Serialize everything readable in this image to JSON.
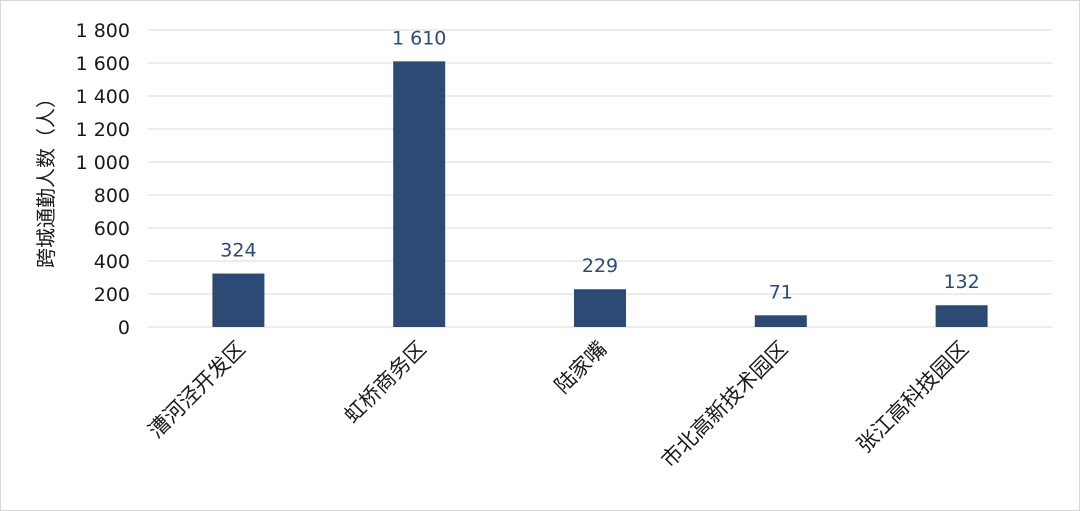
{
  "chart_data": {
    "type": "bar",
    "ylabel": "跨城通勤人数（人）",
    "categories": [
      "漕河泾开发区",
      "虹桥商务区",
      "陆家嘴",
      "市北高新技术园区",
      "张江高科技园区"
    ],
    "values": [
      324,
      1610,
      229,
      71,
      132
    ],
    "data_labels": [
      "324",
      "1 610",
      "229",
      "71",
      "132"
    ],
    "ylim": [
      0,
      1800
    ],
    "yticks": [
      0,
      200,
      400,
      600,
      800,
      1000,
      1200,
      1400,
      1600,
      1800
    ],
    "ytick_labels": [
      "0",
      "200",
      "400",
      "600",
      "800",
      "1 000",
      "1 200",
      "1 400",
      "1 600",
      "1 800"
    ],
    "grid": true,
    "bar_color": "#2c4a74"
  }
}
